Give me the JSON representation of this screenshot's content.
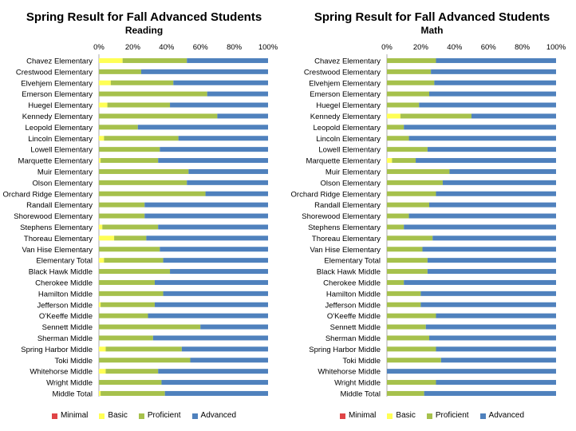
{
  "colors": {
    "minimal": "#e04446",
    "basic": "#ffff55",
    "proficient": "#a6c14c",
    "advanced": "#4f81bd"
  },
  "chart_data": [
    {
      "type": "bar",
      "orientation": "horizontal",
      "stacked": "percent",
      "title": "Spring Result for Fall Advanced Students",
      "subtitle": "Reading",
      "xlim": [
        0,
        100
      ],
      "x_ticks": [
        "0%",
        "20%",
        "40%",
        "60%",
        "80%",
        "100%"
      ],
      "legend_position": "bottom",
      "grid": false,
      "categories": [
        "Chavez Elementary",
        "Crestwood Elementary",
        "Elvehjem Elementary",
        "Emerson Elementary",
        "Huegel Elementary",
        "Kennedy Elementary",
        "Leopold Elementary",
        "Lincoln Elementary",
        "Lowell Elementary",
        "Marquette Elementary",
        "Muir Elementary",
        "Olson Elementary",
        "Orchard Ridge Elementary",
        "Randall Elementary",
        "Shorewood Elementary",
        "Stephens Elementary",
        "Thoreau Elementary",
        "Van Hise Elementary",
        "Elementary Total",
        "Black Hawk Middle",
        "Cherokee Middle",
        "Hamilton Middle",
        "Jefferson Middle",
        "O'Keeffe Middle",
        "Sennett Middle",
        "Sherman Middle",
        "Spring Harbor Middle",
        "Toki Middle",
        "Whitehorse Middle",
        "Wright Middle",
        "Middle Total"
      ],
      "series": [
        {
          "name": "Minimal",
          "values": [
            0,
            0,
            0,
            0,
            0,
            0,
            0,
            0,
            0,
            0,
            0,
            0,
            0,
            0,
            0,
            0,
            0,
            0,
            0,
            0,
            0,
            0,
            0,
            0,
            0,
            0,
            0,
            0,
            0,
            0,
            0
          ]
        },
        {
          "name": "Basic",
          "values": [
            14,
            0,
            7,
            0,
            5,
            0,
            0,
            3,
            0,
            1,
            0,
            0,
            0,
            0,
            0,
            2,
            9,
            0,
            3,
            0,
            0,
            0,
            1,
            0,
            0,
            0,
            4,
            0,
            4,
            0,
            1
          ]
        },
        {
          "name": "Proficient",
          "values": [
            38,
            25,
            37,
            64,
            37,
            70,
            23,
            44,
            36,
            34,
            53,
            52,
            63,
            27,
            27,
            33,
            19,
            36,
            35,
            42,
            33,
            38,
            32,
            29,
            60,
            32,
            45,
            54,
            31,
            37,
            38
          ]
        },
        {
          "name": "Advanced",
          "values": [
            48,
            75,
            56,
            36,
            58,
            30,
            77,
            53,
            64,
            65,
            47,
            48,
            37,
            73,
            73,
            65,
            72,
            64,
            62,
            58,
            67,
            62,
            67,
            71,
            40,
            68,
            51,
            46,
            65,
            63,
            61
          ]
        }
      ]
    },
    {
      "type": "bar",
      "orientation": "horizontal",
      "stacked": "percent",
      "title": "Spring Result for Fall Advanced Students",
      "subtitle": "Math",
      "xlim": [
        0,
        100
      ],
      "x_ticks": [
        "0%",
        "20%",
        "40%",
        "60%",
        "80%",
        "100%"
      ],
      "legend_position": "bottom",
      "grid": false,
      "categories": [
        "Chavez Elementary",
        "Crestwood Elementary",
        "Elvehjem Elementary",
        "Emerson Elementary",
        "Huegel Elementary",
        "Kennedy Elementary",
        "Leopold Elementary",
        "Lincoln Elementary",
        "Lowell Elementary",
        "Marquette Elementary",
        "Muir Elementary",
        "Olson Elementary",
        "Orchard Ridge Elementary",
        "Randall Elementary",
        "Shorewood Elementary",
        "Stephens Elementary",
        "Thoreau Elementary",
        "Van Hise Elementary",
        "Elementary Total",
        "Black Hawk Middle",
        "Cherokee Middle",
        "Hamilton Middle",
        "Jefferson Middle",
        "O'Keeffe Middle",
        "Sennett Middle",
        "Sherman Middle",
        "Spring Harbor Middle",
        "Toki Middle",
        "Whitehorse Middle",
        "Wright Middle",
        "Middle Total"
      ],
      "series": [
        {
          "name": "Minimal",
          "values": [
            0,
            0,
            0,
            0,
            0,
            0,
            0,
            0,
            0,
            0,
            0,
            0,
            0,
            0,
            0,
            0,
            0,
            0,
            0,
            0,
            0,
            0,
            0,
            0,
            0,
            0,
            0,
            0,
            0,
            0,
            0
          ]
        },
        {
          "name": "Basic",
          "values": [
            0,
            0,
            0,
            0,
            0,
            8,
            0,
            0,
            0,
            3,
            0,
            0,
            0,
            0,
            0,
            0,
            0,
            0,
            0,
            0,
            0,
            0,
            0,
            0,
            0,
            0,
            0,
            0,
            0,
            0,
            0
          ]
        },
        {
          "name": "Proficient",
          "values": [
            29,
            26,
            28,
            25,
            19,
            42,
            10,
            13,
            24,
            14,
            37,
            33,
            29,
            25,
            13,
            10,
            27,
            21,
            24,
            24,
            10,
            20,
            20,
            29,
            23,
            25,
            29,
            32,
            0,
            29,
            22
          ]
        },
        {
          "name": "Advanced",
          "values": [
            71,
            74,
            72,
            75,
            81,
            50,
            90,
            87,
            76,
            83,
            63,
            67,
            71,
            75,
            87,
            90,
            73,
            79,
            76,
            76,
            90,
            80,
            80,
            71,
            77,
            75,
            71,
            68,
            100,
            71,
            78
          ]
        }
      ]
    }
  ]
}
